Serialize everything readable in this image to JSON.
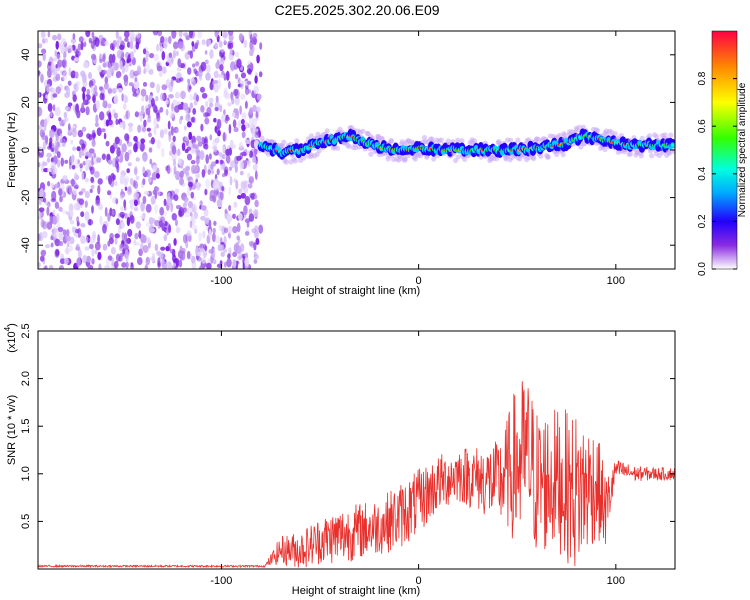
{
  "title": "C2E5.2025.302.20.06.E09",
  "chart_data": [
    {
      "type": "heatmap",
      "name": "spectrogram",
      "xlabel": "Height of straight line (km)",
      "ylabel": "Frequency (Hz)",
      "xlim": [
        -193,
        130
      ],
      "ylim": [
        -50,
        50
      ],
      "xticks": [
        -100,
        0,
        100
      ],
      "yticks": [
        -40,
        -20,
        0,
        20,
        40
      ],
      "noise_region_x": [
        -193,
        -80
      ],
      "ridge": {
        "x": [
          -80,
          -75,
          -70,
          -60,
          -50,
          -40,
          -35,
          -30,
          -20,
          -10,
          -5,
          0,
          10,
          20,
          30,
          40,
          50,
          60,
          70,
          75,
          80,
          85,
          90,
          95,
          100,
          110,
          120,
          130
        ],
        "y": [
          2,
          1,
          -1,
          0,
          3,
          5,
          6,
          4,
          1,
          0,
          0,
          1,
          0,
          0,
          0,
          0,
          0,
          1,
          2,
          3,
          5,
          6,
          5,
          4,
          3,
          2,
          2,
          2
        ]
      },
      "colorbar": {
        "label": "Normalized spectral amplitude",
        "ticks": [
          "0.0",
          "0.2",
          "0.4",
          "0.6",
          "0.8"
        ],
        "tick_values": [
          0.0,
          0.2,
          0.4,
          0.6,
          0.8
        ],
        "range": [
          0,
          1
        ]
      }
    },
    {
      "type": "line",
      "name": "snr",
      "xlabel": "Height of straight line (km)",
      "ylabel": "SNR (10 * v/v)",
      "scale_label": "(x10",
      "scale_exp": "4",
      "scale_close": ")",
      "xlim": [
        -193,
        130
      ],
      "ylim": [
        0,
        2.5
      ],
      "xticks": [
        -100,
        0,
        100
      ],
      "yticks": [
        "0.5",
        "1.0",
        "1.5",
        "2.0",
        "2.5"
      ],
      "ytick_values": [
        0.5,
        1.0,
        1.5,
        2.0,
        2.5
      ],
      "series": [
        {
          "name": "SNR",
          "color": "#e8302c",
          "envelope": {
            "x": [
              -193,
              -78,
              -70,
              -60,
              -50,
              -40,
              -30,
              -20,
              -10,
              0,
              10,
              20,
              30,
              40,
              45,
              50,
              55,
              60,
              70,
              80,
              90,
              95,
              100,
              110,
              120,
              130
            ],
            "center": [
              0.03,
              0.03,
              0.2,
              0.2,
              0.3,
              0.35,
              0.4,
              0.45,
              0.55,
              0.7,
              0.9,
              1.0,
              0.95,
              0.9,
              1.0,
              1.1,
              1.2,
              0.9,
              0.95,
              0.8,
              0.9,
              0.6,
              1.05,
              1.0,
              1.0,
              1.0
            ],
            "amp": [
              0.01,
              0.01,
              0.15,
              0.2,
              0.25,
              0.3,
              0.3,
              0.3,
              0.35,
              0.35,
              0.3,
              0.3,
              0.35,
              0.45,
              0.6,
              0.9,
              0.85,
              0.8,
              0.75,
              0.85,
              0.6,
              0.4,
              0.1,
              0.08,
              0.07,
              0.07
            ]
          }
        }
      ]
    }
  ]
}
